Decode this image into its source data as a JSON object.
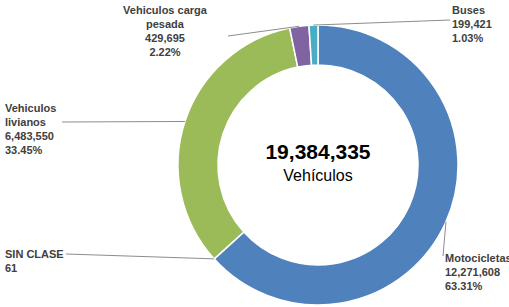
{
  "chart_data": {
    "type": "donut",
    "categories": [
      "Motocicletas",
      "SIN CLASE",
      "Vehiculos livianos",
      "Vehiculos carga pesada",
      "Buses"
    ],
    "values": [
      12271608,
      61,
      6483550,
      429695,
      199421
    ],
    "value_labels": [
      "12,271,608",
      "61",
      "6,483,550",
      "429,695",
      "199,421"
    ],
    "percents": [
      63.31,
      null,
      33.45,
      2.22,
      1.03
    ],
    "percent_labels": [
      "63.31%",
      null,
      "33.45%",
      "2.22%",
      "1.03%"
    ],
    "colors": [
      "#4f81bd",
      "#c0504d",
      "#9bbb59",
      "#8064a2",
      "#4bacc6"
    ],
    "center": {
      "value": 19384335,
      "label": "19,384,335"
    },
    "center_text": "Vehículos",
    "data_labels": true
  }
}
